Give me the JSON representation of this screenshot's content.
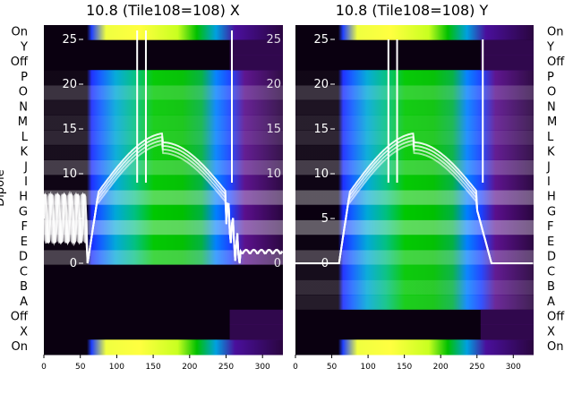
{
  "colors": {
    "background": "#ffffff",
    "trace": "#ffffff",
    "low": "#0a0010",
    "mid_purple": "#5a0f8c",
    "blue": "#1040ff",
    "cyan": "#00b4d0",
    "green": "#00c000",
    "yellow": "#ffff40"
  },
  "chart_data": [
    {
      "type": "heatmap",
      "title": "10.8 (Tile108=108) X",
      "ylabel": "Dipole",
      "x_ticks": [
        0,
        50,
        100,
        150,
        200,
        250,
        300
      ],
      "xlim": [
        0,
        328
      ],
      "rows": [
        "On",
        "Y",
        "Off",
        "P",
        "O",
        "N",
        "M",
        "L",
        "K",
        "J",
        "I",
        "H",
        "G",
        "F",
        "E",
        "D",
        "C",
        "B",
        "A",
        "Off",
        "X",
        "On"
      ],
      "power_ticks": [
        0,
        5,
        10,
        15,
        20,
        25
      ],
      "power_tick_labels": [
        "0",
        "",
        "10",
        "15",
        "20",
        "25"
      ],
      "power_lim": [
        -0.2,
        26.2
      ],
      "trace_series": 4
    },
    {
      "type": "heatmap",
      "title": "10.8 (Tile108=108) Y",
      "x_ticks": [
        0,
        50,
        100,
        150,
        200,
        250,
        300
      ],
      "xlim": [
        0,
        328
      ],
      "rows": [
        "On",
        "Y",
        "Off",
        "P",
        "O",
        "N",
        "M",
        "L",
        "K",
        "J",
        "I",
        "H",
        "G",
        "F",
        "E",
        "D",
        "C",
        "B",
        "A",
        "Off",
        "X",
        "On"
      ],
      "power_ticks": [
        0,
        5,
        10,
        15,
        20,
        25
      ],
      "power_tick_labels": [
        "0",
        "5",
        "10",
        "15",
        "20",
        "25"
      ],
      "power_lim": [
        -0.2,
        26.2
      ],
      "trace_series": 4
    }
  ]
}
